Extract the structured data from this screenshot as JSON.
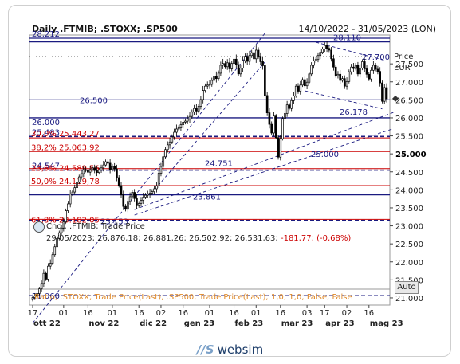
{
  "header": {
    "title": "Daily .FTMIB; .STOXX; .SP500",
    "date_range": "14/10/2022 - 31/05/2023 (LON)"
  },
  "info": {
    "line1": "Cndl; .FTMIB; Trade Price",
    "line2_prefix": "29/05/2023; 26.876,18; 26.881,26; 26.502,92; 26.531,63;",
    "line2_change": "-181,77; (-0,68%)"
  },
  "bottom_bar": ".Ratio; .STOXX; Trade Price(Last); .SP500; Trade Price(Last); 1,0; 1,0; False; False",
  "auto_label": "Auto",
  "footer": {
    "mark": "//S",
    "brand": "websim"
  },
  "colors": {
    "candle_up": "#ffffff",
    "candle_down": "#000000",
    "level_navy": "#1a1a80",
    "fib_red": "#cc0000",
    "trend_blue": "#1a1a80",
    "ratio_orange": "#e08a2a"
  },
  "chart_data": {
    "type": "candlestick",
    "symbol": ".FTMIB",
    "unit_label": "Price\nEUR",
    "ylim": [
      20800,
      28300
    ],
    "y_ticks": [
      21000,
      21500,
      22000,
      22500,
      23000,
      23500,
      24000,
      24500,
      25000,
      25500,
      26000,
      26500,
      27000,
      27500
    ],
    "y_tick_labels": [
      "21.000",
      "21.500",
      "22.000",
      "22.500",
      "23.000",
      "23.500",
      "24.000",
      "24.500",
      "25.000",
      "25.500",
      "26.000",
      "26.500",
      "27.000",
      "27.500"
    ],
    "highlight_tick": "25.000",
    "x_ticks": [
      {
        "day": "17",
        "month": "ott 22",
        "idx": 0
      },
      {
        "day": "01",
        "month": "",
        "idx": 14
      },
      {
        "day": "16",
        "month": "nov 22",
        "idx": 25
      },
      {
        "day": "01",
        "month": "",
        "idx": 36
      },
      {
        "day": "16",
        "month": "dic 22",
        "idx": 48
      },
      {
        "day": "02",
        "month": "",
        "idx": 58
      },
      {
        "day": "16",
        "month": "gen 23",
        "idx": 68
      },
      {
        "day": "01",
        "month": "",
        "idx": 80
      },
      {
        "day": "16",
        "month": "feb 23",
        "idx": 91
      },
      {
        "day": "01",
        "month": "",
        "idx": 101
      },
      {
        "day": "16",
        "month": "mar 23",
        "idx": 112
      },
      {
        "day": "03",
        "month": "",
        "idx": 124
      },
      {
        "day": "17",
        "month": "apr 23",
        "idx": 132
      },
      {
        "day": "02",
        "month": "",
        "idx": 142
      },
      {
        "day": "16",
        "month": "mag 23",
        "idx": 152
      }
    ],
    "closes": [
      21010,
      21050,
      21120,
      21250,
      21400,
      21680,
      21520,
      21880,
      21960,
      22200,
      22420,
      22650,
      22810,
      22940,
      23110,
      23420,
      23610,
      23880,
      23940,
      24060,
      24210,
      24360,
      24450,
      24560,
      24540,
      24490,
      24560,
      24610,
      24540,
      24480,
      24550,
      24610,
      24690,
      24780,
      24740,
      24560,
      24650,
      24580,
      24340,
      24120,
      23860,
      23540,
      23460,
      23680,
      23810,
      23930,
      23760,
      23560,
      23620,
      23710,
      23800,
      23850,
      23880,
      23910,
      23950,
      24030,
      24110,
      24460,
      24650,
      24920,
      25120,
      25250,
      25330,
      25470,
      25600,
      25690,
      25720,
      25810,
      25880,
      25910,
      25960,
      26040,
      26160,
      26260,
      26190,
      26320,
      26510,
      26760,
      26880,
      26910,
      26930,
      27040,
      27160,
      27090,
      27240,
      27460,
      27510,
      27420,
      27530,
      27360,
      27510,
      27630,
      27480,
      27220,
      27380,
      27590,
      27710,
      27570,
      27730,
      27810,
      27640,
      27880,
      27710,
      27560,
      27450,
      26620,
      26140,
      25820,
      25580,
      26050,
      25450,
      24910,
      25420,
      25980,
      26120,
      26360,
      26260,
      26480,
      26610,
      26880,
      26740,
      26910,
      27060,
      26890,
      26990,
      27220,
      27460,
      27580,
      27620,
      27730,
      27820,
      27910,
      28010,
      27930,
      27880,
      27640,
      27410,
      27170,
      27210,
      27040,
      27090,
      26880,
      27010,
      27280,
      27410,
      27370,
      27460,
      27220,
      27380,
      27560,
      27360,
      27210,
      27080,
      27320,
      27460,
      27350,
      27290,
      26970,
      26460,
      26840,
      26530
    ],
    "levels": [
      {
        "value": 28212,
        "label": "28.212",
        "style": "solid",
        "color": "navy"
      },
      {
        "value": 28110,
        "label": "28.110",
        "style": "solid",
        "color": "navy"
      },
      {
        "value": 26500,
        "label": "26.500",
        "style": "solid",
        "color": "navy"
      },
      {
        "value": 26000,
        "label": "26.000",
        "style": "solid",
        "color": "navy"
      },
      {
        "value": 25483,
        "label": "25.483",
        "style": "dashed",
        "color": "navy"
      },
      {
        "value": 24547,
        "label": "24.547",
        "style": "dashed",
        "color": "navy"
      },
      {
        "value": 23861,
        "label": "23.861",
        "style": "solid",
        "color": "navy"
      },
      {
        "value": 23153,
        "label": "23.153",
        "style": "dashed",
        "color": "navy"
      },
      {
        "value": 21060,
        "label": "21.060",
        "style": "dashed",
        "color": "navy"
      }
    ],
    "fib_levels": [
      {
        "value": 25443.27,
        "label": "30,0% 25.443,27"
      },
      {
        "value": 25063.92,
        "label": "38,2% 25.063,92"
      },
      {
        "value": 24589.56,
        "label": "23,6% 24.589,56"
      },
      {
        "value": 24119.78,
        "label": "50,0% 24.119,78"
      },
      {
        "value": 23182.05,
        "label": "61,8% 23.182,05"
      }
    ],
    "price_labels": [
      {
        "value": 27700,
        "label": "27.700"
      },
      {
        "value": 26178,
        "label": "26.178"
      },
      {
        "value": 24751,
        "label": "24.751"
      },
      {
        "value": 25000,
        "label": "25.000"
      }
    ],
    "last_marker": 26531.63
  }
}
